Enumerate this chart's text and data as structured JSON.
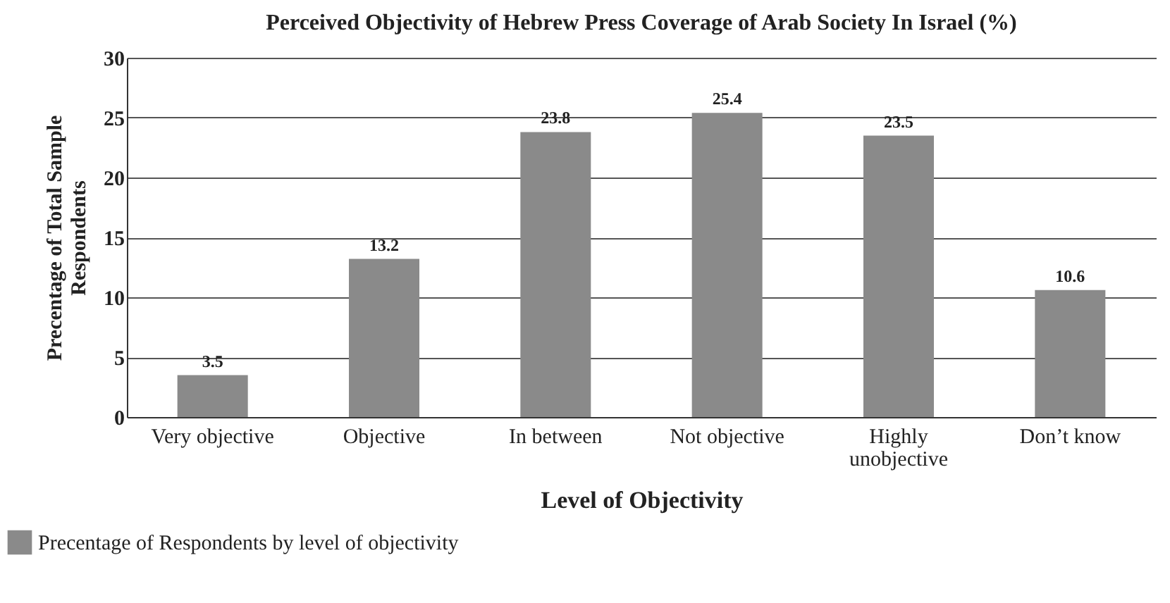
{
  "chart_data": {
    "type": "bar",
    "title": "Perceived Objectivity of Hebrew Press Coverage of Arab Society In Israel (%)",
    "xlabel": "Level of Objectivity",
    "ylabel": "Precentage of Total Sample Respondents",
    "categories": [
      "Very objective",
      "Objective",
      "In between",
      "Not objective",
      "Highly unobjective",
      "Don’t know"
    ],
    "series": [
      {
        "name": "Precentage of Respondents by level of objectivity",
        "color": "#8a8a8a",
        "values": [
          3.5,
          13.2,
          23.8,
          25.4,
          23.5,
          10.6
        ]
      }
    ],
    "ylim": [
      0,
      30
    ],
    "yticks": [
      0,
      5,
      10,
      15,
      20,
      25,
      30
    ],
    "grid": "y",
    "data_labels": true,
    "legend": "bottom left"
  }
}
